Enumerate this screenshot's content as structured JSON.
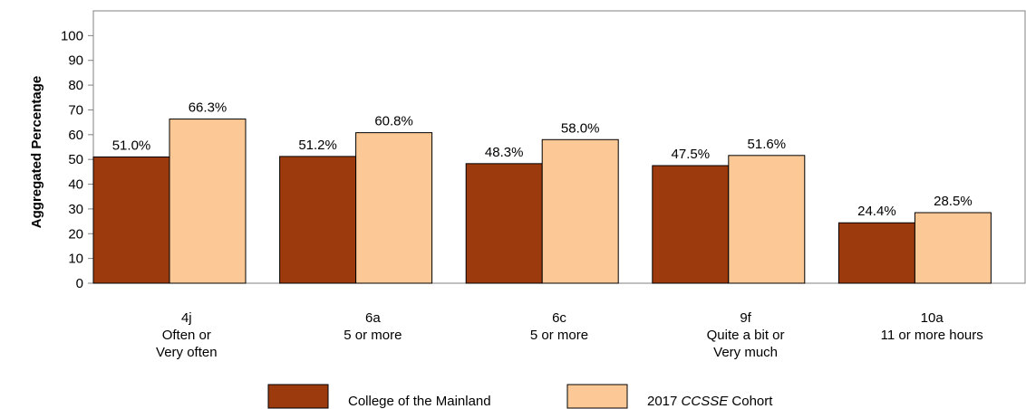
{
  "chart_data": {
    "type": "bar",
    "title": "",
    "xlabel": "",
    "ylabel": "Aggregated Percentage",
    "ylim": [
      0,
      110
    ],
    "yticks": [
      0,
      10,
      20,
      30,
      40,
      50,
      60,
      70,
      80,
      90,
      100
    ],
    "grid": false,
    "legend_position": "bottom",
    "categories": [
      [
        "4j",
        "Often or",
        "Very often"
      ],
      [
        "6a",
        "5 or more"
      ],
      [
        "6c",
        "5 or more"
      ],
      [
        "9f",
        "Quite a bit or",
        "Very much"
      ],
      [
        "10a",
        "11 or more hours"
      ]
    ],
    "series": [
      {
        "name": "College of the Mainland",
        "color": "#9c3a0e",
        "values": [
          51.0,
          51.2,
          48.3,
          47.5,
          24.4
        ],
        "labels": [
          "51.0%",
          "51.2%",
          "48.3%",
          "47.5%",
          "24.4%"
        ]
      },
      {
        "name": "2017 CCSSE Cohort",
        "name_prefix": "2017 ",
        "name_italic": "CCSSE",
        "name_suffix": " Cohort",
        "color": "#fcc996",
        "values": [
          66.3,
          60.8,
          58.0,
          51.6,
          28.5
        ],
        "labels": [
          "66.3%",
          "60.8%",
          "58.0%",
          "51.6%",
          "28.5%"
        ]
      }
    ]
  }
}
